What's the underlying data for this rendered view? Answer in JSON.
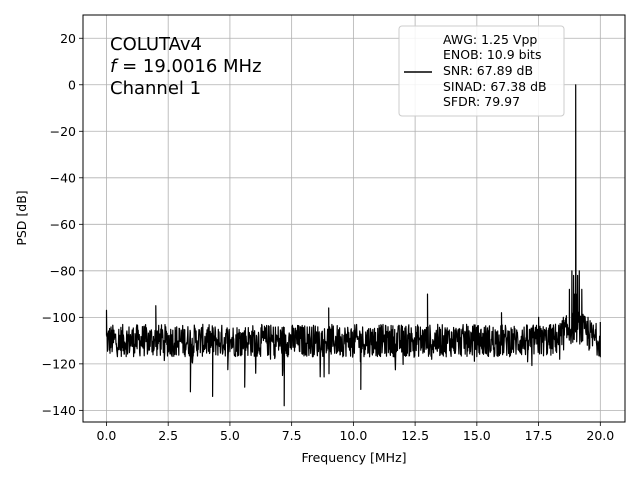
{
  "chart_data": {
    "type": "line",
    "xlabel": "Frequency [MHz]",
    "ylabel": "PSD [dB]",
    "xlim": [
      -0.95,
      21.0
    ],
    "ylim": [
      -145,
      30
    ],
    "x_ticks": [
      0.0,
      2.5,
      5.0,
      7.5,
      10.0,
      12.5,
      15.0,
      17.5,
      20.0
    ],
    "x_tick_labels": [
      "0.0",
      "2.5",
      "5.0",
      "7.5",
      "10.0",
      "12.5",
      "15.0",
      "17.5",
      "20.0"
    ],
    "y_ticks": [
      20,
      0,
      -20,
      -40,
      -60,
      -80,
      -100,
      -120,
      -140
    ],
    "y_tick_labels": [
      "20",
      "0",
      "−20",
      "−40",
      "−60",
      "−80",
      "−100",
      "−120",
      "−140"
    ],
    "grid": true,
    "annotation": {
      "line1": "COLUTAv4",
      "line2_italic": "f",
      "line2_rest": " = 19.0016 MHz",
      "line3": "Channel 1"
    },
    "legend": {
      "placement": "upper right",
      "color": "#000000",
      "entries": [
        "AWG: 1.25 Vpp",
        "ENOB: 10.9 bits",
        "SNR: 67.89 dB",
        "SINAD: 67.38 dB",
        "SFDR: 79.97"
      ]
    },
    "series": [
      {
        "color": "#000000",
        "noise_floor": -110,
        "x": [
          0.0,
          0.05,
          2.0,
          3.4,
          4.3,
          5.6,
          7.2,
          9.0,
          10.3,
          13.0,
          16.0,
          17.5,
          18.5,
          18.75,
          18.85,
          18.92,
          18.97,
          19.0016,
          19.03,
          19.08,
          19.15,
          19.25,
          19.5,
          20.0
        ],
        "y": [
          -97,
          -110,
          -95,
          -132,
          -134,
          -130,
          -138,
          -96,
          -131,
          -90,
          -98,
          -100,
          -100,
          -88,
          -80,
          -82,
          -90,
          0,
          -90,
          -82,
          -80,
          -88,
          -100,
          -102
        ]
      }
    ]
  }
}
